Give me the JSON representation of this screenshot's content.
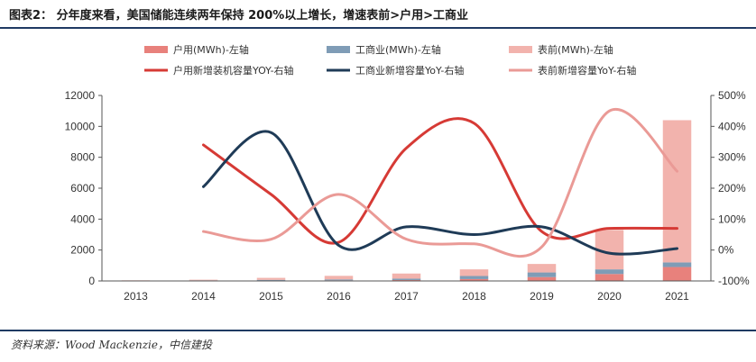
{
  "header": {
    "title": "图表2：    分年度来看，美国储能连续两年保持 200%以上增长，增速表前>户用>工商业"
  },
  "footer": {
    "source": "资料来源：Wood Mackenzie，中信建投"
  },
  "colors": {
    "residential_bar": "#e8817c",
    "commercial_bar": "#7f9cb6",
    "ftm_bar": "#f2b3ad",
    "residential_line": "#d63a35",
    "commercial_line": "#1f3b57",
    "ftm_line": "#ea9a96"
  },
  "chart_data": {
    "type": "bar",
    "title": "",
    "categories": [
      "2013",
      "2014",
      "2015",
      "2016",
      "2017",
      "2018",
      "2019",
      "2020",
      "2021"
    ],
    "y_left": {
      "lim": [
        0,
        12000
      ],
      "ticks": [
        "0",
        "2000",
        "4000",
        "6000",
        "8000",
        "10000",
        "12000"
      ]
    },
    "y_right": {
      "lim": [
        -100,
        500
      ],
      "ticks": [
        "-100%",
        "0%",
        "100%",
        "200%",
        "300%",
        "400%",
        "500%"
      ]
    },
    "bars_stacked": true,
    "series": [
      {
        "name": "户用(MWh)-左轴",
        "kind": "bar",
        "axis": "left",
        "color_key": "residential_bar",
        "values": [
          10,
          20,
          30,
          40,
          60,
          120,
          250,
          450,
          900
        ]
      },
      {
        "name": "工商业(MWh)-左轴",
        "kind": "bar",
        "axis": "left",
        "color_key": "commercial_bar",
        "values": [
          10,
          20,
          40,
          60,
          90,
          200,
          300,
          300,
          300
        ]
      },
      {
        "name": "表前(MWh)-左轴",
        "kind": "bar",
        "axis": "left",
        "color_key": "ftm_bar",
        "values": [
          20,
          40,
          130,
          230,
          330,
          430,
          550,
          2550,
          9200
        ]
      },
      {
        "name": "户用新增装机容量YOY-右轴",
        "kind": "line",
        "axis": "right",
        "color_key": "residential_line",
        "values": [
          null,
          340,
          180,
          25,
          330,
          410,
          60,
          70,
          70
        ]
      },
      {
        "name": "工商业新增容量YoY-右轴",
        "kind": "line",
        "axis": "right",
        "color_key": "commercial_line",
        "values": [
          null,
          205,
          380,
          15,
          75,
          50,
          75,
          -10,
          5
        ]
      },
      {
        "name": "表前新增容量YoY-右轴",
        "kind": "line",
        "axis": "right",
        "color_key": "ftm_line",
        "values": [
          null,
          60,
          35,
          180,
          35,
          20,
          10,
          450,
          255
        ]
      }
    ],
    "legend_position": "top-center",
    "grid": false
  }
}
